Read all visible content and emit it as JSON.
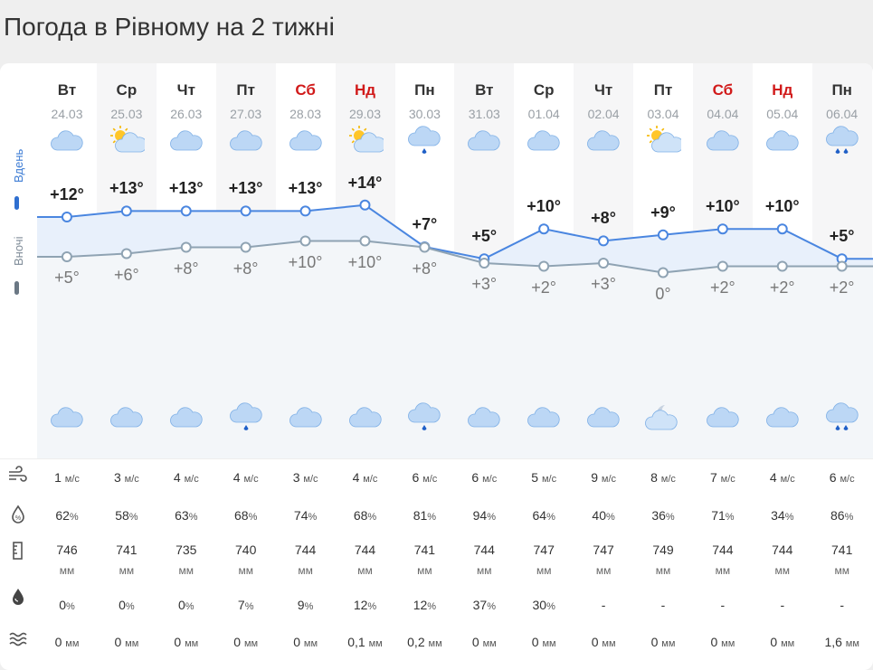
{
  "page_title": "Погода в Рівному на 2 тижні",
  "labels": {
    "day": "Вдень",
    "night": "Вночі"
  },
  "days": [
    {
      "name": "Вт",
      "date": "24.03",
      "weekend": false,
      "icon_day": "cloud-icon",
      "icon_night": "cloud-icon",
      "t_day": "+12°",
      "t_night": "+5°",
      "wind": "1",
      "hum": "62",
      "press": "746",
      "precip_p": "0",
      "precip": "0 мм"
    },
    {
      "name": "Ср",
      "date": "25.03",
      "weekend": false,
      "icon_day": "sun-cloud-icon",
      "icon_night": "cloud-icon",
      "t_day": "+13°",
      "t_night": "+6°",
      "wind": "3",
      "hum": "58",
      "press": "741",
      "precip_p": "0",
      "precip": "0 мм"
    },
    {
      "name": "Чт",
      "date": "26.03",
      "weekend": false,
      "icon_day": "cloud-icon",
      "icon_night": "cloud-icon",
      "t_day": "+13°",
      "t_night": "+8°",
      "wind": "4",
      "hum": "63",
      "press": "735",
      "precip_p": "0",
      "precip": "0 мм"
    },
    {
      "name": "Пт",
      "date": "27.03",
      "weekend": false,
      "icon_day": "cloud-icon",
      "icon_night": "rain-cloud-icon",
      "t_day": "+13°",
      "t_night": "+8°",
      "wind": "4",
      "hum": "68",
      "press": "740",
      "precip_p": "7",
      "precip": "0 мм"
    },
    {
      "name": "Сб",
      "date": "28.03",
      "weekend": true,
      "icon_day": "cloud-icon",
      "icon_night": "cloud-icon",
      "t_day": "+13°",
      "t_night": "+10°",
      "wind": "3",
      "hum": "74",
      "press": "744",
      "precip_p": "9",
      "precip": "0 мм"
    },
    {
      "name": "Нд",
      "date": "29.03",
      "weekend": true,
      "icon_day": "sun-cloud-icon",
      "icon_night": "cloud-icon",
      "t_day": "+14°",
      "t_night": "+10°",
      "wind": "4",
      "hum": "68",
      "press": "744",
      "precip_p": "12",
      "precip": "0,1 мм"
    },
    {
      "name": "Пн",
      "date": "30.03",
      "weekend": false,
      "icon_day": "rain-cloud-icon",
      "icon_night": "rain-cloud-icon",
      "t_day": "+7°",
      "t_night": "+8°",
      "wind": "6",
      "hum": "81",
      "press": "741",
      "precip_p": "12",
      "precip": "0,2 мм"
    },
    {
      "name": "Вт",
      "date": "31.03",
      "weekend": false,
      "icon_day": "cloud-icon",
      "icon_night": "cloud-icon",
      "t_day": "+5°",
      "t_night": "+3°",
      "wind": "6",
      "hum": "94",
      "press": "744",
      "precip_p": "37",
      "precip": "0 мм"
    },
    {
      "name": "Ср",
      "date": "01.04",
      "weekend": false,
      "icon_day": "cloud-icon",
      "icon_night": "cloud-icon",
      "t_day": "+10°",
      "t_night": "+2°",
      "wind": "5",
      "hum": "64",
      "press": "747",
      "precip_p": "30",
      "precip": "0 мм"
    },
    {
      "name": "Чт",
      "date": "02.04",
      "weekend": false,
      "icon_day": "cloud-icon",
      "icon_night": "cloud-icon",
      "t_day": "+8°",
      "t_night": "+3°",
      "wind": "9",
      "hum": "40",
      "press": "747",
      "precip_p": "-",
      "precip": "0 мм"
    },
    {
      "name": "Пт",
      "date": "03.04",
      "weekend": false,
      "icon_day": "sun-cloud-icon",
      "icon_night": "moon-cloud-icon",
      "t_day": "+9°",
      "t_night": "0°",
      "wind": "8",
      "hum": "36",
      "press": "749",
      "precip_p": "-",
      "precip": "0 мм"
    },
    {
      "name": "Сб",
      "date": "04.04",
      "weekend": true,
      "icon_day": "cloud-icon",
      "icon_night": "cloud-icon",
      "t_day": "+10°",
      "t_night": "+2°",
      "wind": "7",
      "hum": "71",
      "press": "744",
      "precip_p": "-",
      "precip": "0 мм"
    },
    {
      "name": "Нд",
      "date": "05.04",
      "weekend": true,
      "icon_day": "cloud-icon",
      "icon_night": "cloud-icon",
      "t_day": "+10°",
      "t_night": "+2°",
      "wind": "4",
      "hum": "34",
      "press": "744",
      "precip_p": "-",
      "precip": "0 мм"
    },
    {
      "name": "Пн",
      "date": "06.04",
      "weekend": false,
      "icon_day": "heavy-rain-cloud-icon",
      "icon_night": "heavy-rain-cloud-icon",
      "t_day": "+5°",
      "t_night": "+2°",
      "wind": "6",
      "hum": "86",
      "press": "741",
      "precip_p": "-",
      "precip": "1,6 мм"
    }
  ],
  "units": {
    "wind": "м/с",
    "hum": "%",
    "press": "мм",
    "precip_p": "%"
  },
  "row_icons": [
    "wind-icon",
    "humidity-icon",
    "pressure-icon",
    "precipitation-probability-icon",
    "precipitation-amount-icon"
  ],
  "chart_data": {
    "type": "line",
    "series": [
      {
        "name": "Вдень",
        "values": [
          12,
          13,
          13,
          13,
          13,
          14,
          7,
          5,
          10,
          8,
          9,
          10,
          10,
          5
        ]
      },
      {
        "name": "Вночі",
        "values": [
          5,
          6,
          8,
          8,
          10,
          10,
          8,
          3,
          2,
          3,
          0,
          2,
          2,
          2
        ]
      }
    ],
    "colors": {
      "day": "#4a86e0",
      "night": "#8fa3b3",
      "day_fill": "#e8f0fb",
      "night_fill": "#f3f6f9"
    }
  }
}
